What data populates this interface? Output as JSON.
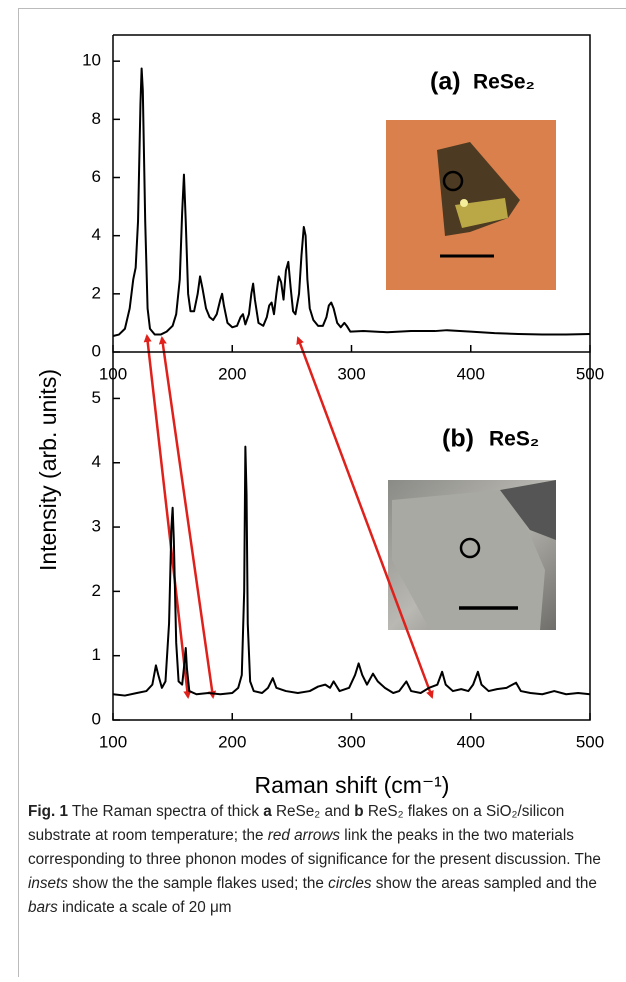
{
  "chart_data": [
    {
      "type": "line",
      "label": "(a)",
      "material": "ReSe₂",
      "ylabel": "Intensity (arb. units)",
      "color": "#000000",
      "xlim": [
        100,
        500
      ],
      "xticks": [
        100,
        200,
        300,
        400,
        500
      ],
      "ylim": [
        0,
        10.9
      ],
      "yticks": [
        0,
        2,
        4,
        6,
        8,
        10
      ],
      "x": [
        100,
        105,
        110,
        114,
        117,
        119,
        121,
        123,
        124,
        125,
        127,
        129,
        131,
        135,
        140,
        145,
        150,
        153,
        156,
        158,
        159.5,
        161,
        163,
        165,
        168,
        171,
        173,
        175,
        178,
        181,
        184,
        187,
        190,
        191.5,
        193,
        196,
        200,
        204,
        207,
        209,
        211,
        214,
        216,
        217.5,
        219,
        222,
        226,
        229,
        231,
        233,
        235,
        237,
        239,
        241,
        243,
        245,
        247,
        249,
        251,
        253,
        256,
        258,
        260,
        261.5,
        263,
        265,
        268,
        272,
        276,
        279,
        281,
        283,
        285,
        288,
        291,
        294,
        296,
        299,
        310,
        330,
        350,
        370,
        380,
        400,
        420,
        440,
        460,
        480,
        500
      ],
      "values": [
        0.55,
        0.6,
        0.8,
        1.5,
        2.5,
        2.9,
        4.5,
        8.5,
        9.75,
        9.0,
        4.5,
        1.5,
        0.8,
        0.6,
        0.6,
        0.7,
        0.9,
        1.3,
        2.5,
        4.8,
        6.1,
        4.5,
        2.0,
        1.4,
        1.4,
        2.0,
        2.6,
        2.2,
        1.5,
        1.2,
        1.1,
        1.3,
        1.8,
        2.0,
        1.6,
        1.0,
        0.85,
        0.9,
        1.2,
        1.3,
        0.95,
        1.3,
        2.0,
        2.35,
        1.8,
        1.0,
        0.9,
        1.2,
        1.6,
        1.7,
        1.3,
        2.0,
        2.6,
        2.4,
        1.8,
        2.8,
        3.1,
        2.2,
        1.4,
        1.3,
        2.0,
        3.3,
        4.3,
        4.0,
        2.5,
        1.5,
        1.1,
        0.9,
        0.9,
        1.2,
        1.6,
        1.7,
        1.5,
        1.0,
        0.85,
        1.0,
        0.9,
        0.7,
        0.72,
        0.68,
        0.72,
        0.72,
        0.75,
        0.7,
        0.65,
        0.62,
        0.6,
        0.6,
        0.62
      ]
    },
    {
      "type": "line",
      "label": "(b)",
      "material": "ReS₂",
      "xlabel": "Raman shift (cm⁻¹)",
      "color": "#000000",
      "xlim": [
        100,
        500
      ],
      "xticks": [
        100,
        200,
        300,
        400,
        500
      ],
      "ylim": [
        0,
        5.1
      ],
      "yticks": [
        0,
        1,
        2,
        3,
        4,
        5
      ],
      "x": [
        100,
        110,
        120,
        128,
        133,
        136,
        138,
        141,
        144,
        147,
        149,
        150,
        151,
        153,
        155,
        158,
        160,
        161,
        162,
        164,
        170,
        180,
        190,
        200,
        205,
        208,
        210,
        211,
        212,
        213,
        215,
        218,
        225,
        230,
        234,
        237,
        245,
        255,
        265,
        272,
        278,
        282,
        285,
        290,
        298,
        303,
        306,
        309,
        313,
        318,
        322,
        328,
        335,
        340,
        346,
        350,
        358,
        365,
        372,
        376,
        379,
        385,
        392,
        398,
        402,
        406,
        409,
        415,
        422,
        430,
        435,
        438,
        442,
        450,
        460,
        470,
        480,
        490,
        500
      ],
      "values": [
        0.4,
        0.38,
        0.42,
        0.45,
        0.55,
        0.85,
        0.7,
        0.5,
        0.6,
        1.5,
        3.0,
        3.3,
        2.8,
        1.2,
        0.6,
        0.55,
        0.9,
        1.12,
        0.8,
        0.45,
        0.4,
        0.42,
        0.4,
        0.42,
        0.5,
        0.7,
        2.0,
        4.25,
        3.5,
        1.5,
        0.6,
        0.45,
        0.42,
        0.5,
        0.65,
        0.5,
        0.45,
        0.42,
        0.45,
        0.52,
        0.55,
        0.5,
        0.6,
        0.45,
        0.5,
        0.7,
        0.88,
        0.7,
        0.55,
        0.72,
        0.6,
        0.5,
        0.42,
        0.45,
        0.6,
        0.45,
        0.42,
        0.5,
        0.55,
        0.75,
        0.55,
        0.45,
        0.48,
        0.45,
        0.55,
        0.75,
        0.55,
        0.45,
        0.48,
        0.5,
        0.55,
        0.58,
        0.45,
        0.42,
        0.4,
        0.45,
        0.4,
        0.42,
        0.4
      ]
    }
  ],
  "caption": {
    "segments": [
      "Fig. 1",
      " The Raman spectra of thick ",
      "a",
      " ReSe₂ and ",
      "b",
      " ReS₂ flakes on a SiO₂/silicon substrate at room temperature; the ",
      "red arrows",
      " link the peaks in the two materials corresponding to three phonon modes of significance for the present discussion. The ",
      "insets",
      " show the the sample flakes used; the ",
      "circles",
      " show the areas sampled and the ",
      "bars",
      " indicate a scale of 20 μm"
    ]
  }
}
